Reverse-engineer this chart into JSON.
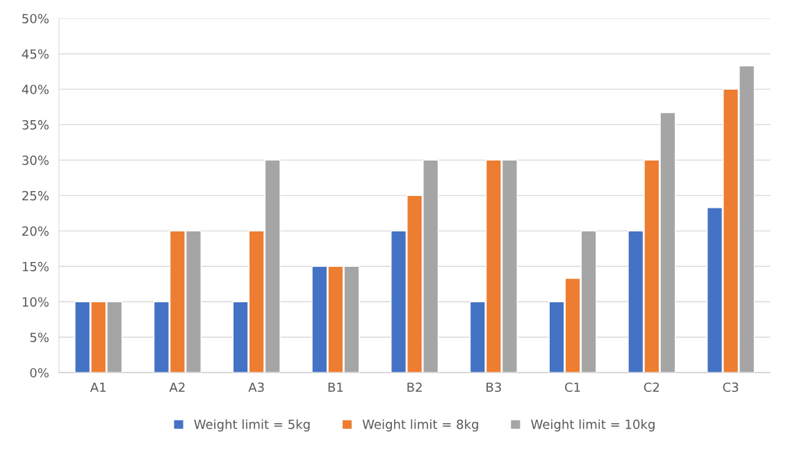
{
  "chart_data": {
    "type": "bar",
    "categories": [
      "A1",
      "A2",
      "A3",
      "B1",
      "B2",
      "B3",
      "C1",
      "C2",
      "C3"
    ],
    "series": [
      {
        "name": "Weight limit = 5kg",
        "color": "#4472c4",
        "values": [
          10,
          10,
          10,
          15,
          20,
          10,
          10,
          20,
          23.3
        ]
      },
      {
        "name": "Weight limit = 8kg",
        "color": "#ed7d31",
        "values": [
          10,
          20,
          20,
          15,
          25,
          30,
          13.3,
          30,
          40
        ]
      },
      {
        "name": "Weight limit = 10kg",
        "color": "#a5a5a5",
        "values": [
          10,
          20,
          30,
          15,
          30,
          30,
          20,
          36.7,
          43.3
        ]
      }
    ],
    "ylim": [
      0,
      50
    ],
    "yticks": [
      {
        "value": 0,
        "label": "0%"
      },
      {
        "value": 5,
        "label": "5%"
      },
      {
        "value": 10,
        "label": "10%"
      },
      {
        "value": 15,
        "label": "15%"
      },
      {
        "value": 20,
        "label": "20%"
      },
      {
        "value": 25,
        "label": "25%"
      },
      {
        "value": 30,
        "label": "30%"
      },
      {
        "value": 35,
        "label": "35%"
      },
      {
        "value": 40,
        "label": "40%"
      },
      {
        "value": 45,
        "label": "45%"
      },
      {
        "value": 50,
        "label": "50%"
      }
    ],
    "grid": "y",
    "legend": "bottom"
  }
}
